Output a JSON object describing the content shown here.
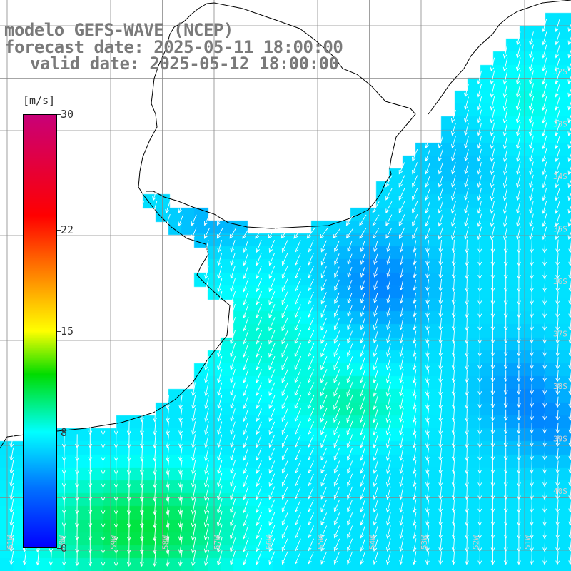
{
  "header": {
    "model": "modelo GEFS-WAVE (NCEP)",
    "forecast": "forecast date: 2025-05-11 18:00:00",
    "valid": "valid date: 2025-05-12 18:00:00"
  },
  "colorbar": {
    "unit": "[m/s]",
    "min": 0,
    "max": 30,
    "ticks": [
      {
        "value": 30,
        "label": "30"
      },
      {
        "value": 22,
        "label": "22"
      },
      {
        "value": 15,
        "label": "15"
      },
      {
        "value": 8,
        "label": "8"
      },
      {
        "value": 0,
        "label": "0"
      }
    ]
  },
  "map": {
    "field": "wind speed with direction arrows",
    "land_color": "#ffffff",
    "coastline_color": "#000000",
    "grid_color": "#888888",
    "arrow_color": "#ffffff",
    "typical_speed_ms": "6-13",
    "latitude_labels": [
      "32S",
      "33S",
      "34S",
      "35S",
      "36S",
      "37S",
      "38S",
      "39S",
      "40S"
    ],
    "longitude_labels": [
      "61W",
      "60W",
      "59W",
      "58W",
      "57W",
      "56W",
      "55W",
      "54W",
      "53W",
      "52W",
      "51W"
    ]
  }
}
